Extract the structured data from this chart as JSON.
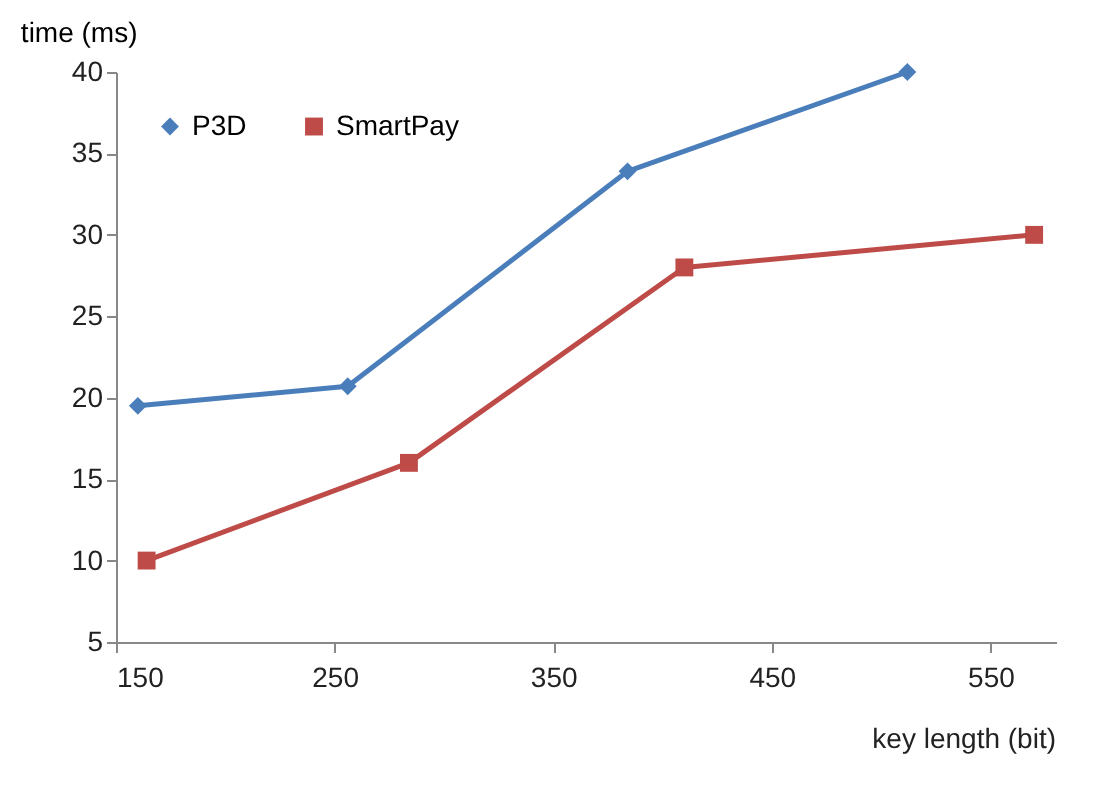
{
  "chart_data": {
    "type": "line",
    "xlabel": "key length (bit)",
    "ylabel": "time (ms)",
    "xlim": [
      150,
      580
    ],
    "xticks": [
      150,
      250,
      350,
      450,
      550
    ],
    "ylim": [
      5,
      40
    ],
    "yticks": [
      5,
      10,
      15,
      20,
      25,
      30,
      35,
      40
    ],
    "grid": false,
    "legend": "top left",
    "line_style": "solid",
    "series": [
      {
        "name": "P3D",
        "color": "#4a7ebb",
        "marker": "diamond",
        "x": [
          160,
          256,
          384,
          512
        ],
        "values": [
          19.5,
          20.7,
          33.9,
          40
        ]
      },
      {
        "name": "SmartPay",
        "color": "#be4b48",
        "marker": "square",
        "x": [
          164,
          284,
          410,
          570
        ],
        "values": [
          10,
          16,
          28,
          30
        ]
      }
    ]
  }
}
